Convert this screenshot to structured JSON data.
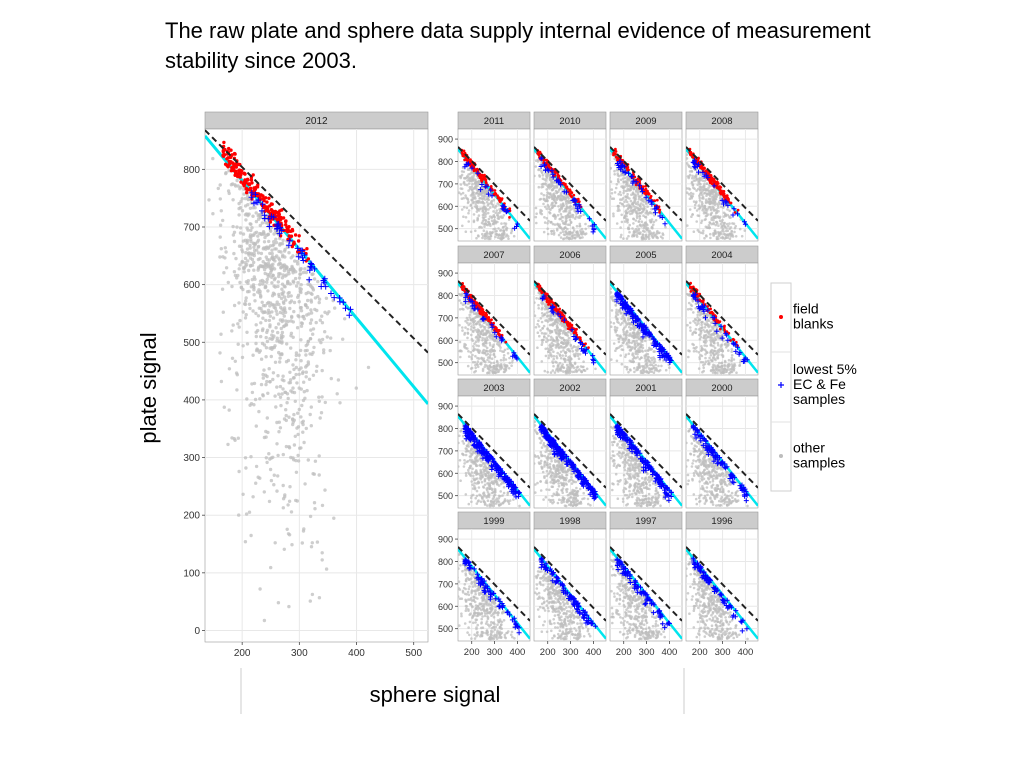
{
  "slide": {
    "text": "The raw plate and sphere data supply internal evidence of measurement stability since 2003."
  },
  "colors": {
    "field_blanks": "#ff0000",
    "lowest": "#0000ff",
    "other": "#bdbdbd",
    "fit_line": "#00e5ee",
    "dashed_line": "#222222",
    "strip": "#cccccc",
    "panel_bg": "#ffffff",
    "grid": "#e8e8e8"
  },
  "chart_data": {
    "type": "scatter",
    "xlabel": "sphere signal",
    "ylabel": "plate signal",
    "legend": {
      "placement": "right",
      "entries": [
        {
          "key": "field_blanks",
          "label_lines": [
            "field",
            "blanks"
          ],
          "marker": "dot"
        },
        {
          "key": "lowest",
          "label_lines": [
            "lowest 5%",
            "EC & Fe",
            "samples"
          ],
          "marker": "plus"
        },
        {
          "key": "other",
          "label_lines": [
            "other",
            "samples"
          ],
          "marker": "dot"
        }
      ]
    },
    "main_panel": {
      "title": "2012",
      "xlim": [
        135,
        525
      ],
      "ylim": [
        -20,
        870
      ],
      "xticks": [
        200,
        300,
        400,
        500
      ],
      "yticks": [
        0,
        100,
        200,
        300,
        400,
        500,
        600,
        700,
        800
      ],
      "solid_line": [
        [
          135,
          858
        ],
        [
          525,
          393
        ]
      ],
      "dashed_line": [
        [
          135,
          868
        ],
        [
          525,
          482
        ]
      ],
      "field_blanks": {
        "x_range": [
          165,
          330
        ],
        "count": 220
      },
      "lowest": {
        "x_range": [
          215,
          390
        ],
        "count": 55
      },
      "other_count": 900
    },
    "small_panels": {
      "xlim": [
        140,
        455
      ],
      "ylim": [
        445,
        945
      ],
      "xticks": [
        200,
        300,
        400
      ],
      "yticks": [
        500,
        600,
        700,
        800,
        900
      ],
      "solid_line": [
        [
          140,
          855
        ],
        [
          455,
          455
        ]
      ],
      "dashed_line": [
        [
          140,
          865
        ],
        [
          455,
          535
        ]
      ],
      "panels": [
        {
          "year": "2011",
          "red": 120,
          "blue": 25
        },
        {
          "year": "2010",
          "red": 90,
          "blue": 35
        },
        {
          "year": "2009",
          "red": 90,
          "blue": 35
        },
        {
          "year": "2008",
          "red": 140,
          "blue": 25
        },
        {
          "year": "2007",
          "red": 110,
          "blue": 30
        },
        {
          "year": "2006",
          "red": 130,
          "blue": 30
        },
        {
          "year": "2005",
          "red": 0,
          "blue": 160
        },
        {
          "year": "2004",
          "red": 70,
          "blue": 40
        },
        {
          "year": "2003",
          "red": 0,
          "blue": 200
        },
        {
          "year": "2002",
          "red": 0,
          "blue": 220
        },
        {
          "year": "2001",
          "red": 0,
          "blue": 160
        },
        {
          "year": "2000",
          "red": 0,
          "blue": 90
        },
        {
          "year": "1999",
          "red": 0,
          "blue": 70
        },
        {
          "year": "1998",
          "red": 0,
          "blue": 90
        },
        {
          "year": "1997",
          "red": 0,
          "blue": 80
        },
        {
          "year": "1996",
          "red": 0,
          "blue": 70
        }
      ]
    }
  }
}
